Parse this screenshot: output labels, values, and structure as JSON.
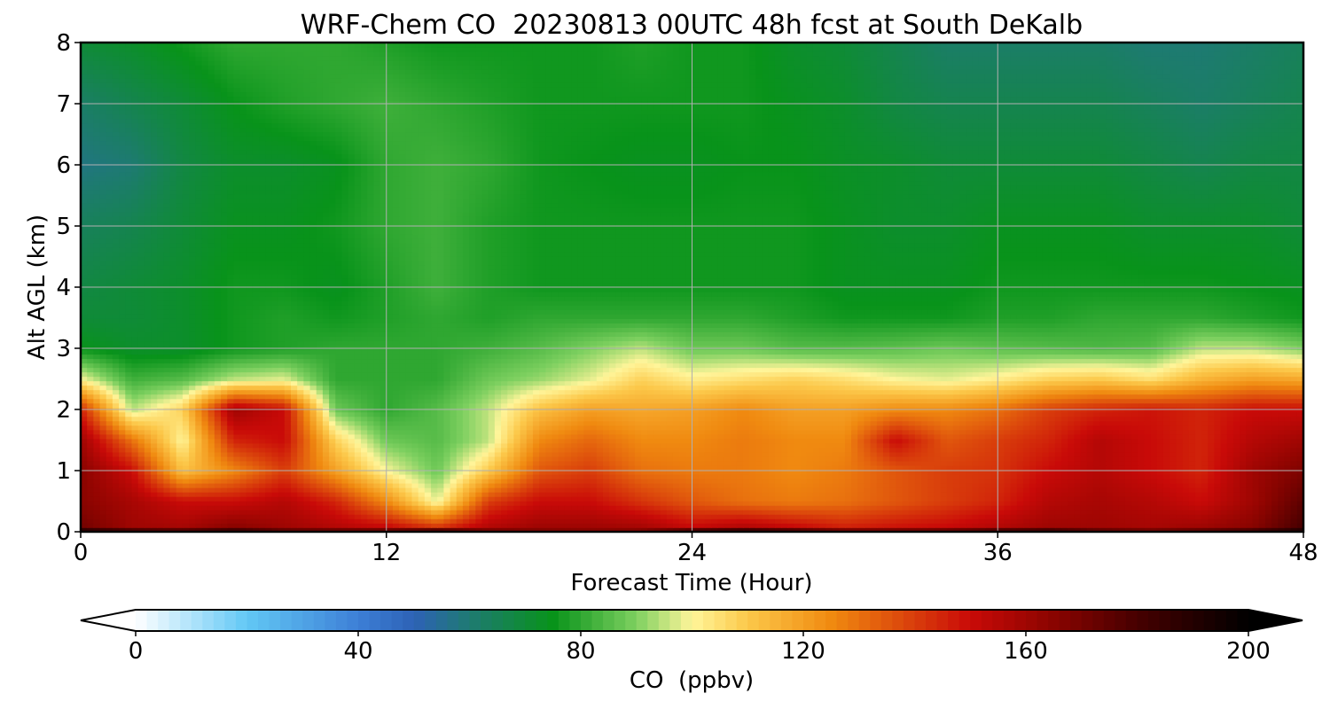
{
  "chart_data": {
    "type": "heatmap",
    "title": "WRF-Chem CO  20230813 00UTC 48h fcst at South DeKalb",
    "xlabel": "Forecast Time (Hour)",
    "ylabel": "Alt AGL (km)",
    "xlim": [
      0,
      48
    ],
    "ylim": [
      0,
      8
    ],
    "x_ticks": [
      0,
      12,
      24,
      36,
      48
    ],
    "y_ticks": [
      0,
      1,
      2,
      3,
      4,
      5,
      6,
      7,
      8
    ],
    "grid": true,
    "colorbar": {
      "label": "CO  (ppbv)",
      "min": 0,
      "max": 200,
      "ticks": [
        0,
        40,
        80,
        120,
        160,
        200
      ],
      "extend": "both",
      "color_stops": [
        {
          "v": 0,
          "c": "#ffffff"
        },
        {
          "v": 20,
          "c": "#62c8f5"
        },
        {
          "v": 40,
          "c": "#3d7fd6"
        },
        {
          "v": 50,
          "c": "#2d62b6"
        },
        {
          "v": 60,
          "c": "#1e7a72"
        },
        {
          "v": 75,
          "c": "#08931a"
        },
        {
          "v": 90,
          "c": "#7ed060"
        },
        {
          "v": 100,
          "c": "#fff59a"
        },
        {
          "v": 110,
          "c": "#fcc84a"
        },
        {
          "v": 125,
          "c": "#f08a10"
        },
        {
          "v": 150,
          "c": "#c90a08"
        },
        {
          "v": 165,
          "c": "#8a0400"
        },
        {
          "v": 180,
          "c": "#460000"
        },
        {
          "v": 200,
          "c": "#000000"
        }
      ]
    },
    "hours": [
      0,
      2,
      4,
      6,
      8,
      10,
      12,
      14,
      16,
      18,
      20,
      22,
      24,
      26,
      28,
      30,
      32,
      34,
      36,
      38,
      40,
      42,
      44,
      46,
      48
    ],
    "altitudes_km": [
      0,
      0.1,
      0.5,
      1,
      1.5,
      2,
      2.5,
      3,
      3.5,
      4,
      5,
      6,
      7,
      8
    ],
    "co_ppbv": [
      [
        195,
        188,
        185,
        190,
        180,
        180,
        182,
        195,
        175,
        170,
        168,
        170,
        190,
        195,
        190,
        180,
        180,
        182,
        188,
        190,
        180,
        175,
        180,
        185,
        195
      ],
      [
        170,
        160,
        158,
        165,
        160,
        155,
        150,
        140,
        155,
        160,
        160,
        158,
        150,
        155,
        150,
        145,
        148,
        150,
        155,
        160,
        160,
        158,
        160,
        165,
        180
      ],
      [
        165,
        158,
        150,
        150,
        155,
        145,
        125,
        98,
        140,
        150,
        150,
        142,
        135,
        130,
        128,
        130,
        135,
        140,
        145,
        155,
        158,
        155,
        150,
        160,
        175
      ],
      [
        165,
        150,
        112,
        125,
        140,
        120,
        100,
        88,
        110,
        135,
        140,
        130,
        128,
        128,
        125,
        128,
        135,
        140,
        142,
        150,
        155,
        150,
        145,
        160,
        168
      ],
      [
        160,
        130,
        100,
        145,
        150,
        108,
        88,
        85,
        95,
        125,
        132,
        125,
        125,
        128,
        125,
        125,
        150,
        135,
        140,
        145,
        155,
        150,
        145,
        155,
        160
      ],
      [
        145,
        95,
        108,
        160,
        150,
        88,
        80,
        85,
        95,
        112,
        120,
        118,
        120,
        125,
        120,
        120,
        125,
        125,
        130,
        140,
        145,
        148,
        145,
        150,
        150
      ],
      [
        100,
        82,
        85,
        95,
        98,
        80,
        80,
        80,
        88,
        92,
        98,
        108,
        102,
        105,
        108,
        105,
        100,
        98,
        102,
        108,
        110,
        105,
        115,
        120,
        118
      ],
      [
        75,
        72,
        72,
        76,
        78,
        80,
        80,
        80,
        82,
        85,
        90,
        95,
        88,
        88,
        85,
        85,
        86,
        88,
        86,
        85,
        84,
        85,
        95,
        95,
        90
      ],
      [
        70,
        70,
        72,
        76,
        78,
        76,
        78,
        80,
        78,
        80,
        80,
        80,
        80,
        80,
        78,
        76,
        76,
        76,
        78,
        78,
        80,
        80,
        80,
        78,
        76
      ],
      [
        68,
        70,
        72,
        76,
        76,
        74,
        78,
        82,
        78,
        76,
        76,
        76,
        76,
        76,
        76,
        74,
        74,
        74,
        76,
        76,
        76,
        76,
        76,
        75,
        74
      ],
      [
        64,
        66,
        70,
        74,
        74,
        76,
        80,
        82,
        78,
        76,
        76,
        76,
        76,
        76,
        76,
        74,
        72,
        72,
        74,
        74,
        74,
        72,
        72,
        72,
        70
      ],
      [
        58,
        60,
        68,
        72,
        72,
        74,
        80,
        82,
        80,
        76,
        75,
        74,
        74,
        75,
        75,
        73,
        72,
        70,
        70,
        70,
        70,
        68,
        66,
        68,
        68
      ],
      [
        62,
        66,
        70,
        75,
        78,
        80,
        82,
        80,
        78,
        76,
        76,
        76,
        76,
        76,
        74,
        72,
        68,
        66,
        66,
        66,
        66,
        64,
        62,
        64,
        66
      ],
      [
        70,
        72,
        76,
        80,
        80,
        80,
        78,
        76,
        76,
        76,
        76,
        78,
        76,
        76,
        72,
        70,
        66,
        62,
        62,
        62,
        62,
        60,
        60,
        62,
        64
      ]
    ]
  }
}
